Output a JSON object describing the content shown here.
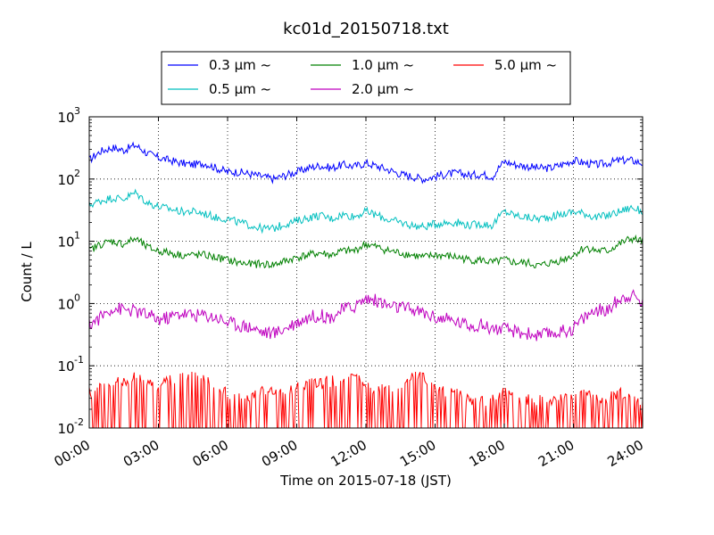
{
  "chart_data": {
    "type": "line",
    "title": "kc01d_20150718.txt",
    "xlabel": "Time on 2015-07-18 (JST)",
    "ylabel": "Count / L",
    "yscale": "log",
    "ylim": [
      0.01,
      1000
    ],
    "xlim": [
      "00:00",
      "24:00"
    ],
    "grid": true,
    "legend_position": "top-center",
    "x_tick_labels": [
      "00:00",
      "03:00",
      "06:00",
      "09:00",
      "12:00",
      "15:00",
      "18:00",
      "21:00",
      "24:00"
    ],
    "x_tick_hours": [
      0,
      3,
      6,
      9,
      12,
      15,
      18,
      21,
      24
    ],
    "y_ticks": [
      {
        "value": 0.01,
        "base": "10",
        "exp": "-2"
      },
      {
        "value": 0.1,
        "base": "10",
        "exp": "-1"
      },
      {
        "value": 1,
        "base": "10",
        "exp": "0"
      },
      {
        "value": 10,
        "base": "10",
        "exp": "1"
      },
      {
        "value": 100,
        "base": "10",
        "exp": "2"
      },
      {
        "value": 1000,
        "base": "10",
        "exp": "3"
      }
    ],
    "x_hours": [
      0,
      0.5,
      1,
      1.5,
      2,
      2.5,
      3,
      3.5,
      4,
      4.5,
      5,
      5.5,
      6,
      6.5,
      7,
      7.5,
      8,
      8.5,
      9,
      9.5,
      10,
      10.5,
      11,
      11.5,
      12,
      12.5,
      13,
      13.5,
      14,
      14.5,
      15,
      15.5,
      16,
      16.5,
      17,
      17.5,
      18,
      18.5,
      19,
      19.5,
      20,
      20.5,
      21,
      21.5,
      22,
      22.5,
      23,
      23.5,
      24
    ],
    "series": [
      {
        "name": "0.3 μm ~",
        "color": "#0000ff",
        "values": [
          200,
          280,
          320,
          290,
          350,
          260,
          220,
          200,
          180,
          170,
          180,
          150,
          130,
          130,
          120,
          110,
          100,
          115,
          130,
          150,
          165,
          150,
          170,
          160,
          180,
          160,
          140,
          120,
          110,
          100,
          110,
          120,
          125,
          115,
          120,
          110,
          190,
          170,
          160,
          150,
          150,
          170,
          200,
          180,
          170,
          180,
          200,
          200,
          180
        ]
      },
      {
        "name": "0.5 μm ~",
        "color": "#00bfbf",
        "values": [
          38,
          45,
          50,
          48,
          60,
          42,
          36,
          33,
          30,
          30,
          28,
          24,
          23,
          20,
          18,
          16,
          16,
          19,
          21,
          24,
          26,
          23,
          27,
          25,
          30,
          26,
          22,
          20,
          18,
          17,
          19,
          20,
          20,
          18,
          19,
          18,
          30,
          26,
          24,
          23,
          25,
          27,
          30,
          28,
          24,
          26,
          30,
          35,
          30
        ]
      },
      {
        "name": "1.0 μm ~",
        "color": "#008000",
        "values": [
          7,
          9,
          10,
          9,
          11,
          8,
          7,
          6.5,
          6,
          6,
          6,
          5.5,
          5,
          4.5,
          4.3,
          4.3,
          4.2,
          4.8,
          5.5,
          6,
          6.5,
          6,
          7,
          7,
          9,
          8,
          7,
          6.5,
          6,
          5.5,
          6,
          5.8,
          5.5,
          5,
          5,
          4.5,
          5,
          4.5,
          4.5,
          4,
          4.5,
          5,
          6,
          8,
          7,
          7,
          9,
          11,
          10
        ]
      },
      {
        "name": "2.0 μm ~",
        "color": "#bf00bf",
        "values": [
          0.45,
          0.6,
          0.85,
          0.8,
          0.75,
          0.65,
          0.55,
          0.6,
          0.7,
          0.65,
          0.65,
          0.6,
          0.5,
          0.45,
          0.42,
          0.35,
          0.33,
          0.4,
          0.5,
          0.6,
          0.65,
          0.6,
          0.8,
          0.9,
          1.2,
          1.1,
          0.9,
          0.85,
          0.8,
          0.7,
          0.6,
          0.55,
          0.5,
          0.45,
          0.45,
          0.4,
          0.38,
          0.35,
          0.33,
          0.3,
          0.33,
          0.35,
          0.4,
          0.6,
          0.8,
          0.75,
          1.2,
          1.4,
          1.0
        ]
      },
      {
        "name": "5.0 μm ~",
        "color": "#ff0000",
        "values": [
          0.025,
          0.03,
          0.035,
          0.04,
          0.045,
          0.035,
          0.03,
          0.04,
          0.045,
          0.05,
          0.04,
          0.03,
          0.025,
          0.02,
          0.02,
          0.03,
          0.025,
          0.025,
          0.03,
          0.035,
          0.035,
          0.04,
          0.04,
          0.045,
          0.03,
          0.03,
          0.03,
          0.035,
          0.045,
          0.05,
          0.03,
          0.025,
          0.025,
          0.02,
          0.02,
          0.02,
          0.025,
          0.02,
          0.02,
          0.02,
          0.02,
          0.02,
          0.02,
          0.025,
          0.02,
          0.02,
          0.025,
          0.02,
          0.02
        ]
      }
    ]
  }
}
